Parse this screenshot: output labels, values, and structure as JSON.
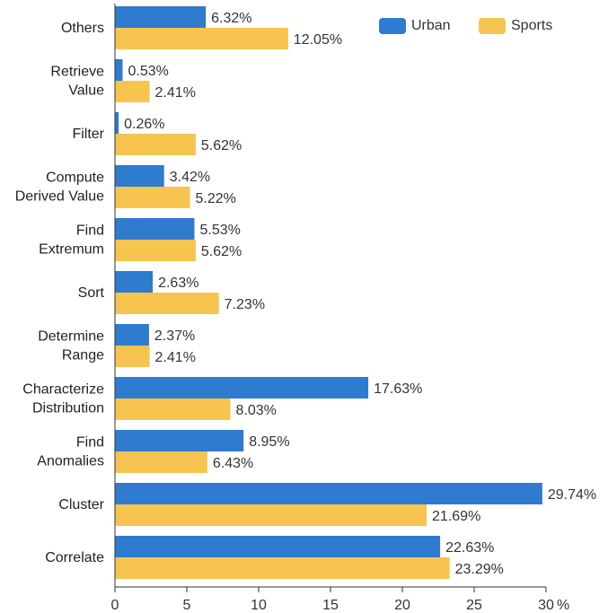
{
  "chart_data": {
    "type": "bar",
    "orientation": "horizontal",
    "categories": [
      "Others",
      "Retrieve Value",
      "Filter",
      "Compute Derived Value",
      "Find Extremum",
      "Sort",
      "Determine Range",
      "Characterize Distribution",
      "Find Anomalies",
      "Cluster",
      "Correlate"
    ],
    "category_lines": [
      [
        "Others"
      ],
      [
        "Retrieve",
        "Value"
      ],
      [
        "Filter"
      ],
      [
        "Compute",
        "Derived Value"
      ],
      [
        "Find",
        "Extremum"
      ],
      [
        "Sort"
      ],
      [
        "Determine",
        "Range"
      ],
      [
        "Characterize",
        "Distribution"
      ],
      [
        "Find",
        "Anomalies"
      ],
      [
        "Cluster"
      ],
      [
        "Correlate"
      ]
    ],
    "series": [
      {
        "name": "Urban",
        "color": "#2e7bcf",
        "values": [
          6.32,
          0.53,
          0.26,
          3.42,
          5.53,
          2.63,
          2.37,
          17.63,
          8.95,
          29.74,
          22.63
        ],
        "labels": [
          "6.32%",
          "0.53%",
          "0.26%",
          "3.42%",
          "5.53%",
          "2.63%",
          "2.37%",
          "17.63%",
          "8.95%",
          "29.74%",
          "22.63%"
        ]
      },
      {
        "name": "Sports",
        "color": "#f7c44f",
        "values": [
          12.05,
          2.41,
          5.62,
          5.22,
          5.62,
          7.23,
          2.41,
          8.03,
          6.43,
          21.69,
          23.29
        ],
        "labels": [
          "12.05%",
          "2.41%",
          "5.62%",
          "5.22%",
          "5.62%",
          "7.23%",
          "2.41%",
          "8.03%",
          "6.43%",
          "21.69%",
          "23.29%"
        ]
      }
    ],
    "xlim": [
      0,
      30
    ],
    "xticks": [
      0,
      5,
      10,
      15,
      20,
      25,
      30
    ],
    "xtick_labels": [
      "0",
      "5",
      "10",
      "15",
      "20",
      "25",
      "30"
    ],
    "xunit": "%",
    "legend_position": "top-right",
    "grid": false
  }
}
